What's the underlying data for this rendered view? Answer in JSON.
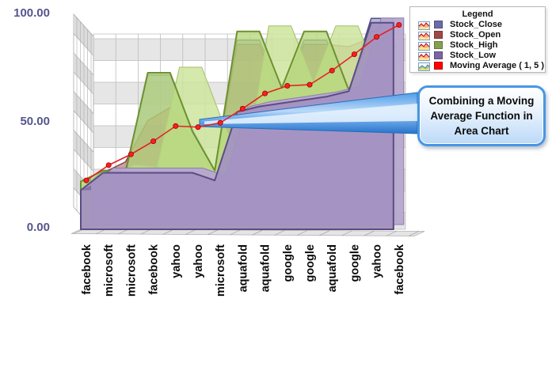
{
  "axis": {
    "y_ticks": [
      "100.00",
      "50.00",
      "0.00"
    ]
  },
  "legend": {
    "title": "Legend",
    "items": [
      {
        "label": "Stock_Close",
        "color": "#6a6aa8",
        "icon": "area-chart-icon"
      },
      {
        "label": "Stock_Open",
        "color": "#a04848",
        "icon": "area-chart-icon"
      },
      {
        "label": "Stock_High",
        "color": "#84a050",
        "icon": "area-chart-icon"
      },
      {
        "label": "Stock_Low",
        "color": "#7a64a4",
        "icon": "area-chart-icon"
      },
      {
        "label": "Moving Average ( 1, 5 )",
        "color": "#ff0000",
        "icon": "moving-average-icon"
      }
    ]
  },
  "callout": {
    "text": "Combining a Moving Average Function in Area Chart"
  },
  "chart_data": {
    "type": "area",
    "projection": "3d",
    "title": "",
    "xlabel": "",
    "ylabel": "",
    "ylim": [
      0,
      100
    ],
    "grid": true,
    "legend_position": "top-right",
    "categories": [
      "facebook",
      "microsoft",
      "microsoft",
      "facebook",
      "yahoo",
      "yahoo",
      "microsoft",
      "aquafold",
      "aquafold",
      "google",
      "google",
      "aquafold",
      "google",
      "yahoo",
      "facebook"
    ],
    "series": [
      {
        "name": "Stock_Close",
        "color": "#6a6aa8",
        "values": [
          18,
          27,
          27,
          71,
          71,
          46,
          27,
          87,
          87,
          62,
          87,
          87,
          64,
          97,
          97
        ]
      },
      {
        "name": "Stock_Open",
        "color": "#a04848",
        "values": [
          17,
          26,
          31,
          50,
          56,
          41,
          25,
          85,
          85,
          59,
          85,
          85,
          84,
          88,
          92
        ]
      },
      {
        "name": "Stock_High",
        "color": "#84a050",
        "values": [
          22,
          27,
          26,
          72,
          72,
          45,
          27,
          91,
          91,
          65,
          91,
          91,
          64,
          91,
          91
        ]
      },
      {
        "name": "Stock_Low",
        "color": "#7a64a4",
        "values": [
          18,
          26,
          26,
          26,
          26,
          26,
          22.5,
          54,
          56.5,
          58,
          59.5,
          61,
          63.5,
          95,
          95
        ]
      }
    ],
    "moving_average": {
      "name": "Moving Average ( 1, 5 )",
      "color": "#ff0000",
      "values": [
        22.5,
        29.5,
        34.5,
        40.5,
        47.5,
        47,
        49,
        55.5,
        62.5,
        66,
        66.5,
        73,
        80.5,
        88.5,
        94
      ]
    }
  }
}
